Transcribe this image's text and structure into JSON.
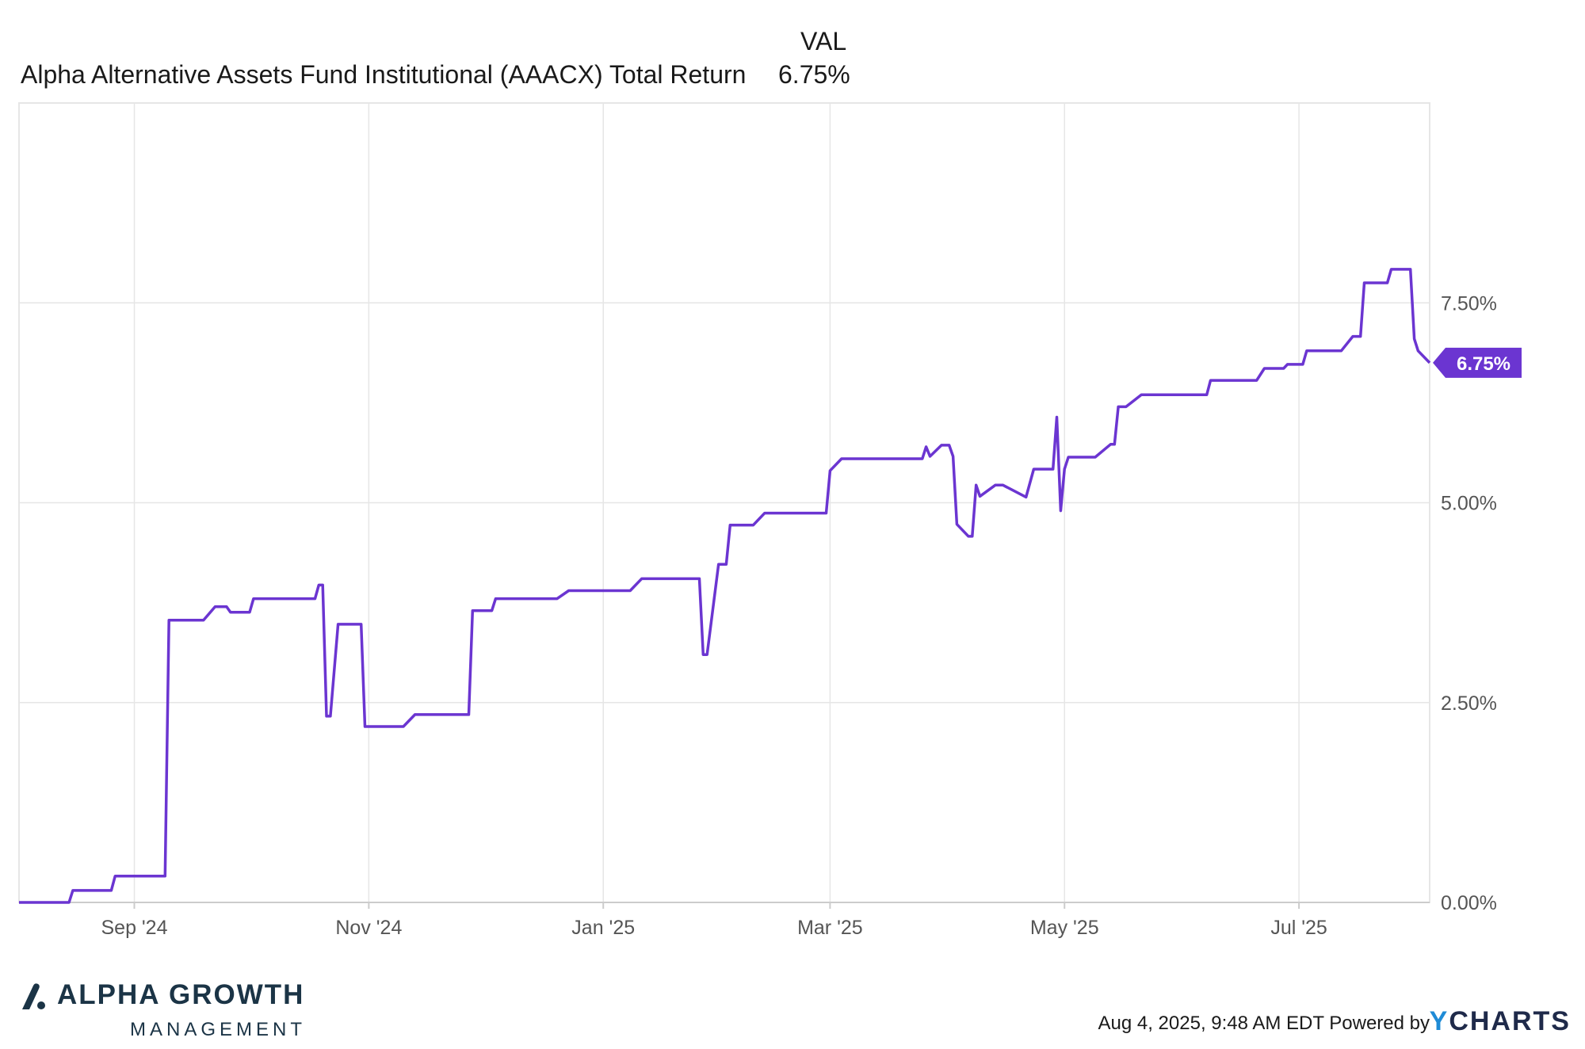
{
  "legend": {
    "value_header": "VAL",
    "series_label": "Alpha Alternative Assets Fund Institutional (AAACX) Total Return",
    "series_value": "6.75%"
  },
  "footer": {
    "timestamp": "Aug 4, 2025, 9:48 AM EDT",
    "powered_by": "Powered by",
    "ycharts_y": "Y",
    "ycharts_rest": "CHARTS"
  },
  "brand": {
    "name": "ALPHA GROWTH",
    "sub": "MANAGEMENT",
    "mark_icon": "alpha-growth-logo-mark"
  },
  "colors": {
    "series": "#6b35d1",
    "grid": "#e6e6e6",
    "axis_text": "#555555"
  },
  "chart_data": {
    "type": "line",
    "x_ticks": [
      "Sep '24",
      "Nov '24",
      "Jan '25",
      "Mar '25",
      "May '25",
      "Jul '25"
    ],
    "x_tick_dates": [
      "2024-09-01",
      "2024-11-01",
      "2025-01-01",
      "2025-03-01",
      "2025-05-01",
      "2025-07-01"
    ],
    "x_range": [
      "2024-08-02",
      "2025-08-04"
    ],
    "y_ticks": [
      "0.00%",
      "2.50%",
      "5.00%",
      "7.50%"
    ],
    "y_tick_values": [
      0,
      2.5,
      5,
      7.5
    ],
    "ylim": [
      0,
      10
    ],
    "grid": true,
    "end_label": "6.75%",
    "series": [
      {
        "name": "Alpha Alternative Assets Fund Institutional (AAACX) Total Return",
        "points": [
          [
            "2024-08-02",
            0.0
          ],
          [
            "2024-08-15",
            0.0
          ],
          [
            "2024-08-16",
            0.15
          ],
          [
            "2024-08-26",
            0.15
          ],
          [
            "2024-08-27",
            0.33
          ],
          [
            "2024-09-09",
            0.33
          ],
          [
            "2024-09-10",
            3.53
          ],
          [
            "2024-09-19",
            3.53
          ],
          [
            "2024-09-22",
            3.7
          ],
          [
            "2024-09-25",
            3.7
          ],
          [
            "2024-09-26",
            3.63
          ],
          [
            "2024-10-01",
            3.63
          ],
          [
            "2024-10-02",
            3.8
          ],
          [
            "2024-10-18",
            3.8
          ],
          [
            "2024-10-19",
            3.97
          ],
          [
            "2024-10-20",
            3.97
          ],
          [
            "2024-10-21",
            2.33
          ],
          [
            "2024-10-22",
            2.33
          ],
          [
            "2024-10-24",
            3.48
          ],
          [
            "2024-10-30",
            3.48
          ],
          [
            "2024-10-31",
            2.2
          ],
          [
            "2024-11-10",
            2.2
          ],
          [
            "2024-11-13",
            2.35
          ],
          [
            "2024-11-27",
            2.35
          ],
          [
            "2024-11-28",
            3.65
          ],
          [
            "2024-12-03",
            3.65
          ],
          [
            "2024-12-04",
            3.8
          ],
          [
            "2024-12-20",
            3.8
          ],
          [
            "2024-12-23",
            3.9
          ],
          [
            "2025-01-08",
            3.9
          ],
          [
            "2025-01-11",
            4.05
          ],
          [
            "2025-01-26",
            4.05
          ],
          [
            "2025-01-27",
            3.1
          ],
          [
            "2025-01-28",
            3.1
          ],
          [
            "2025-01-31",
            4.23
          ],
          [
            "2025-02-02",
            4.23
          ],
          [
            "2025-02-03",
            4.72
          ],
          [
            "2025-02-09",
            4.72
          ],
          [
            "2025-02-12",
            4.87
          ],
          [
            "2025-02-28",
            4.87
          ],
          [
            "2025-03-01",
            5.4
          ],
          [
            "2025-03-04",
            5.55
          ],
          [
            "2025-03-25",
            5.55
          ],
          [
            "2025-03-26",
            5.7
          ],
          [
            "2025-03-27",
            5.58
          ],
          [
            "2025-03-30",
            5.72
          ],
          [
            "2025-04-01",
            5.72
          ],
          [
            "2025-04-02",
            5.58
          ],
          [
            "2025-04-03",
            4.73
          ],
          [
            "2025-04-06",
            4.58
          ],
          [
            "2025-04-07",
            4.58
          ],
          [
            "2025-04-08",
            5.22
          ],
          [
            "2025-04-09",
            5.08
          ],
          [
            "2025-04-13",
            5.22
          ],
          [
            "2025-04-15",
            5.22
          ],
          [
            "2025-04-21",
            5.07
          ],
          [
            "2025-04-23",
            5.42
          ],
          [
            "2025-04-28",
            5.42
          ],
          [
            "2025-04-29",
            6.07
          ],
          [
            "2025-04-30",
            4.9
          ],
          [
            "2025-05-01",
            5.42
          ],
          [
            "2025-05-02",
            5.57
          ],
          [
            "2025-05-09",
            5.57
          ],
          [
            "2025-05-13",
            5.73
          ],
          [
            "2025-05-14",
            5.73
          ],
          [
            "2025-05-15",
            6.2
          ],
          [
            "2025-05-17",
            6.2
          ],
          [
            "2025-05-21",
            6.35
          ],
          [
            "2025-06-07",
            6.35
          ],
          [
            "2025-06-08",
            6.53
          ],
          [
            "2025-06-20",
            6.53
          ],
          [
            "2025-06-22",
            6.68
          ],
          [
            "2025-06-27",
            6.68
          ],
          [
            "2025-06-28",
            6.73
          ],
          [
            "2025-07-02",
            6.73
          ],
          [
            "2025-07-03",
            6.9
          ],
          [
            "2025-07-12",
            6.9
          ],
          [
            "2025-07-15",
            7.08
          ],
          [
            "2025-07-17",
            7.08
          ],
          [
            "2025-07-18",
            7.75
          ],
          [
            "2025-07-24",
            7.75
          ],
          [
            "2025-07-25",
            7.92
          ],
          [
            "2025-07-30",
            7.92
          ],
          [
            "2025-07-31",
            7.05
          ],
          [
            "2025-08-01",
            6.9
          ],
          [
            "2025-08-04",
            6.75
          ]
        ]
      }
    ]
  }
}
